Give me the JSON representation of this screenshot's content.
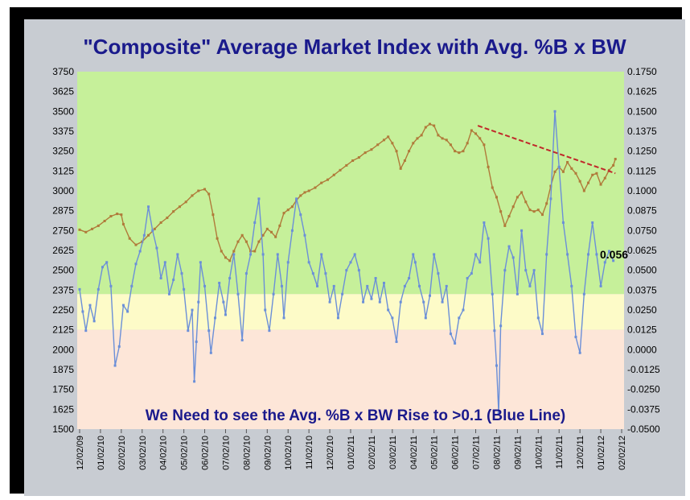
{
  "chart_data": {
    "type": "line",
    "title": "\"Composite\" Average Market Index with Avg. %B x BW",
    "annotation": "We Need to see the Avg. %B x BW Rise to >0.1 (Blue Line)",
    "end_label": "0.056",
    "left_axis": {
      "ylim": [
        1500,
        3750
      ],
      "ticks": [
        "3750",
        "3625",
        "3500",
        "3375",
        "3250",
        "3125",
        "3000",
        "2875",
        "2750",
        "2625",
        "2500",
        "2375",
        "2250",
        "2125",
        "2000",
        "1875",
        "1750",
        "1625",
        "1500"
      ]
    },
    "right_axis": {
      "ylim": [
        -0.05,
        0.175
      ],
      "ticks": [
        "0.1750",
        "0.1625",
        "0.1500",
        "0.1375",
        "0.1250",
        "0.1125",
        "0.1000",
        "0.0875",
        "0.0750",
        "0.0625",
        "0.0500",
        "0.0375",
        "0.0250",
        "0.0125",
        "0.0000",
        "-0.0125",
        "-0.0250",
        "-0.0375",
        "-0.0500"
      ]
    },
    "x_ticks": [
      "12/02/09",
      "01/02/10",
      "02/02/10",
      "03/02/10",
      "04/02/10",
      "05/02/10",
      "06/02/10",
      "07/02/10",
      "08/02/10",
      "09/02/10",
      "10/02/10",
      "11/02/10",
      "12/02/10",
      "01/02/11",
      "02/02/11",
      "03/02/11",
      "04/02/11",
      "05/02/11",
      "06/02/11",
      "07/02/11",
      "08/02/11",
      "09/02/11",
      "10/02/11",
      "11/02/11",
      "12/02/11",
      "01/02/12",
      "02/02/12"
    ],
    "bands": [
      {
        "from": 0.035,
        "to": 0.175,
        "color": "#c6f09a"
      },
      {
        "from": 0.0125,
        "to": 0.035,
        "color": "#fdfbc8"
      },
      {
        "from": -0.05,
        "to": 0.0125,
        "color": "#fde6d8"
      }
    ],
    "series": [
      {
        "axis": "left",
        "color": "#b07a3a",
        "values": [
          [
            0,
            2755
          ],
          [
            0.3,
            2740
          ],
          [
            0.6,
            2760
          ],
          [
            0.9,
            2780
          ],
          [
            1.2,
            2810
          ],
          [
            1.5,
            2840
          ],
          [
            1.8,
            2855
          ],
          [
            2.0,
            2850
          ],
          [
            2.1,
            2790
          ],
          [
            2.4,
            2700
          ],
          [
            2.7,
            2660
          ],
          [
            3.0,
            2680
          ],
          [
            3.3,
            2720
          ],
          [
            3.6,
            2760
          ],
          [
            3.9,
            2800
          ],
          [
            4.2,
            2830
          ],
          [
            4.5,
            2870
          ],
          [
            4.8,
            2900
          ],
          [
            5.1,
            2930
          ],
          [
            5.4,
            2970
          ],
          [
            5.7,
            3000
          ],
          [
            6.0,
            3010
          ],
          [
            6.2,
            2980
          ],
          [
            6.4,
            2850
          ],
          [
            6.6,
            2700
          ],
          [
            6.8,
            2620
          ],
          [
            7.0,
            2580
          ],
          [
            7.2,
            2560
          ],
          [
            7.4,
            2620
          ],
          [
            7.6,
            2680
          ],
          [
            7.8,
            2720
          ],
          [
            8.0,
            2680
          ],
          [
            8.2,
            2620
          ],
          [
            8.4,
            2620
          ],
          [
            8.6,
            2680
          ],
          [
            8.8,
            2720
          ],
          [
            9.0,
            2760
          ],
          [
            9.2,
            2740
          ],
          [
            9.4,
            2710
          ],
          [
            9.6,
            2780
          ],
          [
            9.8,
            2860
          ],
          [
            10.0,
            2880
          ],
          [
            10.2,
            2900
          ],
          [
            10.4,
            2940
          ],
          [
            10.6,
            2970
          ],
          [
            10.8,
            2990
          ],
          [
            11.0,
            3000
          ],
          [
            11.3,
            3020
          ],
          [
            11.6,
            3050
          ],
          [
            11.9,
            3070
          ],
          [
            12.2,
            3100
          ],
          [
            12.5,
            3130
          ],
          [
            12.8,
            3160
          ],
          [
            13.1,
            3190
          ],
          [
            13.4,
            3210
          ],
          [
            13.7,
            3240
          ],
          [
            14.0,
            3260
          ],
          [
            14.3,
            3290
          ],
          [
            14.6,
            3320
          ],
          [
            14.8,
            3340
          ],
          [
            15.0,
            3300
          ],
          [
            15.2,
            3250
          ],
          [
            15.4,
            3140
          ],
          [
            15.6,
            3190
          ],
          [
            15.8,
            3250
          ],
          [
            16.0,
            3300
          ],
          [
            16.2,
            3330
          ],
          [
            16.4,
            3350
          ],
          [
            16.6,
            3400
          ],
          [
            16.8,
            3420
          ],
          [
            17.0,
            3410
          ],
          [
            17.2,
            3350
          ],
          [
            17.4,
            3330
          ],
          [
            17.6,
            3320
          ],
          [
            17.8,
            3290
          ],
          [
            18.0,
            3250
          ],
          [
            18.2,
            3240
          ],
          [
            18.4,
            3250
          ],
          [
            18.6,
            3300
          ],
          [
            18.8,
            3380
          ],
          [
            19.0,
            3360
          ],
          [
            19.2,
            3330
          ],
          [
            19.4,
            3290
          ],
          [
            19.6,
            3150
          ],
          [
            19.8,
            3020
          ],
          [
            20.0,
            2960
          ],
          [
            20.2,
            2870
          ],
          [
            20.4,
            2780
          ],
          [
            20.6,
            2840
          ],
          [
            20.8,
            2900
          ],
          [
            21.0,
            2960
          ],
          [
            21.2,
            2990
          ],
          [
            21.4,
            2930
          ],
          [
            21.6,
            2880
          ],
          [
            21.8,
            2870
          ],
          [
            22.0,
            2880
          ],
          [
            22.2,
            2850
          ],
          [
            22.4,
            2920
          ],
          [
            22.6,
            3030
          ],
          [
            22.8,
            3120
          ],
          [
            23.0,
            3150
          ],
          [
            23.2,
            3120
          ],
          [
            23.4,
            3180
          ],
          [
            23.6,
            3140
          ],
          [
            23.8,
            3110
          ],
          [
            24.0,
            3060
          ],
          [
            24.2,
            3000
          ],
          [
            24.4,
            3050
          ],
          [
            24.6,
            3100
          ],
          [
            24.8,
            3110
          ],
          [
            25.0,
            3040
          ],
          [
            25.2,
            3080
          ],
          [
            25.4,
            3130
          ],
          [
            25.6,
            3160
          ],
          [
            25.7,
            3200
          ]
        ]
      },
      {
        "axis": "right",
        "color": "#6b8fd8",
        "values": [
          [
            0,
            0.038
          ],
          [
            0.15,
            0.024
          ],
          [
            0.3,
            0.012
          ],
          [
            0.5,
            0.028
          ],
          [
            0.7,
            0.018
          ],
          [
            0.9,
            0.038
          ],
          [
            1.1,
            0.052
          ],
          [
            1.3,
            0.055
          ],
          [
            1.5,
            0.04
          ],
          [
            1.7,
            -0.01
          ],
          [
            1.9,
            0.002
          ],
          [
            2.1,
            0.028
          ],
          [
            2.3,
            0.024
          ],
          [
            2.5,
            0.04
          ],
          [
            2.7,
            0.054
          ],
          [
            2.9,
            0.062
          ],
          [
            3.1,
            0.072
          ],
          [
            3.3,
            0.09
          ],
          [
            3.5,
            0.075
          ],
          [
            3.7,
            0.064
          ],
          [
            3.9,
            0.045
          ],
          [
            4.1,
            0.055
          ],
          [
            4.3,
            0.035
          ],
          [
            4.5,
            0.044
          ],
          [
            4.7,
            0.06
          ],
          [
            4.9,
            0.048
          ],
          [
            5.0,
            0.038
          ],
          [
            5.2,
            0.012
          ],
          [
            5.4,
            0.025
          ],
          [
            5.5,
            -0.02
          ],
          [
            5.6,
            0.005
          ],
          [
            5.7,
            0.03
          ],
          [
            5.8,
            0.055
          ],
          [
            6.0,
            0.04
          ],
          [
            6.2,
            0.012
          ],
          [
            6.3,
            -0.002
          ],
          [
            6.5,
            0.02
          ],
          [
            6.7,
            0.042
          ],
          [
            6.9,
            0.03
          ],
          [
            7.0,
            0.022
          ],
          [
            7.2,
            0.045
          ],
          [
            7.4,
            0.06
          ],
          [
            7.6,
            0.035
          ],
          [
            7.8,
            0.006
          ],
          [
            8.0,
            0.048
          ],
          [
            8.2,
            0.06
          ],
          [
            8.4,
            0.08
          ],
          [
            8.6,
            0.095
          ],
          [
            8.8,
            0.06
          ],
          [
            8.9,
            0.025
          ],
          [
            9.1,
            0.012
          ],
          [
            9.3,
            0.035
          ],
          [
            9.5,
            0.06
          ],
          [
            9.7,
            0.04
          ],
          [
            9.8,
            0.02
          ],
          [
            10.0,
            0.055
          ],
          [
            10.2,
            0.075
          ],
          [
            10.4,
            0.095
          ],
          [
            10.6,
            0.085
          ],
          [
            10.8,
            0.072
          ],
          [
            11.0,
            0.055
          ],
          [
            11.2,
            0.048
          ],
          [
            11.4,
            0.04
          ],
          [
            11.6,
            0.06
          ],
          [
            11.8,
            0.048
          ],
          [
            12.0,
            0.03
          ],
          [
            12.2,
            0.04
          ],
          [
            12.4,
            0.02
          ],
          [
            12.6,
            0.035
          ],
          [
            12.8,
            0.05
          ],
          [
            13.0,
            0.055
          ],
          [
            13.2,
            0.06
          ],
          [
            13.4,
            0.05
          ],
          [
            13.6,
            0.03
          ],
          [
            13.8,
            0.04
          ],
          [
            14.0,
            0.032
          ],
          [
            14.2,
            0.045
          ],
          [
            14.4,
            0.03
          ],
          [
            14.6,
            0.042
          ],
          [
            14.8,
            0.025
          ],
          [
            15.0,
            0.02
          ],
          [
            15.2,
            0.005
          ],
          [
            15.4,
            0.03
          ],
          [
            15.6,
            0.04
          ],
          [
            15.8,
            0.045
          ],
          [
            16.0,
            0.06
          ],
          [
            16.1,
            0.055
          ],
          [
            16.3,
            0.04
          ],
          [
            16.5,
            0.03
          ],
          [
            16.6,
            0.02
          ],
          [
            16.8,
            0.034
          ],
          [
            17.0,
            0.06
          ],
          [
            17.2,
            0.048
          ],
          [
            17.4,
            0.03
          ],
          [
            17.6,
            0.04
          ],
          [
            17.8,
            0.01
          ],
          [
            18.0,
            0.004
          ],
          [
            18.2,
            0.02
          ],
          [
            18.4,
            0.025
          ],
          [
            18.6,
            0.045
          ],
          [
            18.8,
            0.048
          ],
          [
            19.0,
            0.06
          ],
          [
            19.2,
            0.055
          ],
          [
            19.4,
            0.08
          ],
          [
            19.6,
            0.07
          ],
          [
            19.8,
            0.035
          ],
          [
            19.9,
            0.012
          ],
          [
            20.0,
            -0.01
          ],
          [
            20.1,
            -0.04
          ],
          [
            20.2,
            0.015
          ],
          [
            20.4,
            0.05
          ],
          [
            20.6,
            0.065
          ],
          [
            20.8,
            0.058
          ],
          [
            21.0,
            0.035
          ],
          [
            21.2,
            0.075
          ],
          [
            21.4,
            0.05
          ],
          [
            21.6,
            0.04
          ],
          [
            21.8,
            0.05
          ],
          [
            22.0,
            0.02
          ],
          [
            22.2,
            0.01
          ],
          [
            22.4,
            0.06
          ],
          [
            22.6,
            0.095
          ],
          [
            22.8,
            0.15
          ],
          [
            23.0,
            0.115
          ],
          [
            23.2,
            0.08
          ],
          [
            23.4,
            0.06
          ],
          [
            23.6,
            0.04
          ],
          [
            23.8,
            0.008
          ],
          [
            24.0,
            -0.002
          ],
          [
            24.2,
            0.035
          ],
          [
            24.4,
            0.06
          ],
          [
            24.6,
            0.08
          ],
          [
            24.8,
            0.06
          ],
          [
            25.0,
            0.04
          ],
          [
            25.2,
            0.055
          ],
          [
            25.4,
            0.062
          ],
          [
            25.6,
            0.056
          ]
        ]
      }
    ],
    "trendline": {
      "axis": "left",
      "from": [
        19.1,
        3410
      ],
      "to": [
        25.7,
        3110
      ],
      "color": "#c0282a",
      "dash": true
    }
  }
}
